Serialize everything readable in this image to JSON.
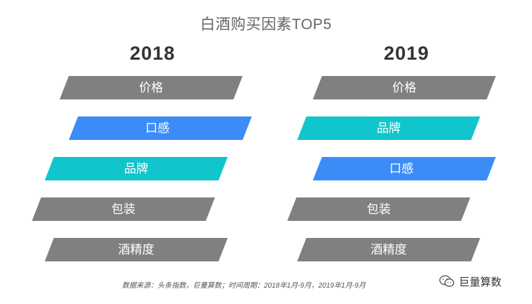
{
  "title": "白酒购买因素TOP5",
  "columns": [
    {
      "year": "2018",
      "factors": [
        "价格",
        "口感",
        "品牌",
        "包装",
        "酒精度"
      ]
    },
    {
      "year": "2019",
      "factors": [
        "价格",
        "品牌",
        "口感",
        "包装",
        "酒精度"
      ]
    }
  ],
  "source": "数据来源：头条指数，巨量算数；时间周期：2018年1月-9月，2019年1月-9月",
  "brand": "巨量算数",
  "colors": {
    "gray": "#808080",
    "blue": "#3c8cf7",
    "cyan": "#10c5cc",
    "title": "#666666"
  },
  "icons": {
    "brand": "wechat-icon"
  }
}
